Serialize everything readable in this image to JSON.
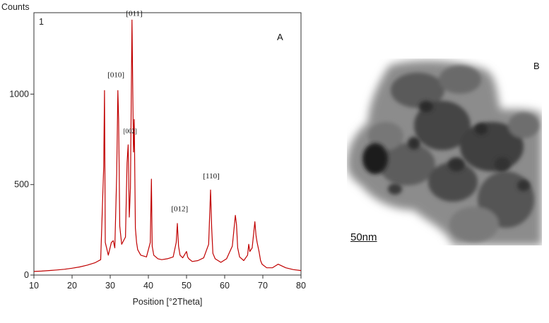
{
  "chart_data": {
    "type": "line",
    "ylabel": "Counts",
    "xlabel": "Position [°2Theta]",
    "panel_label": "A",
    "inset_number": "1",
    "xlim": [
      10,
      80
    ],
    "ylim": [
      0,
      1450
    ],
    "x_ticks": [
      10,
      20,
      30,
      40,
      50,
      60,
      70,
      80
    ],
    "y_ticks": [
      0,
      500,
      1000
    ],
    "grid": false,
    "line_color": "#c00000",
    "series": [
      {
        "x": [
          10,
          12,
          14,
          16,
          18,
          20,
          22,
          24,
          26,
          27.5,
          28.3,
          28.5,
          28.7,
          29.5,
          30.3,
          30.8,
          31.2,
          31.7,
          32.0,
          32.2,
          32.5,
          33.0,
          34.0,
          34.4,
          34.7,
          35.0,
          35.3,
          35.7,
          36.1,
          36.3,
          36.6,
          36.9,
          37.2,
          38.0,
          39.5,
          40.5,
          40.8,
          41.0,
          41.4,
          42.5,
          43.5,
          45.0,
          46.5,
          47.3,
          47.6,
          47.9,
          48.3,
          49.0,
          50.0,
          50.3,
          50.6,
          51.5,
          53.0,
          54.5,
          55.8,
          56.3,
          56.6,
          56.9,
          57.5,
          59.0,
          60.5,
          62.0,
          62.8,
          63.1,
          63.4,
          63.9,
          65.0,
          66.0,
          66.3,
          66.6,
          67.2,
          67.9,
          68.2,
          68.5,
          69.0,
          69.4,
          69.8,
          71.0,
          72.5,
          74.0,
          76.0,
          78.0,
          80.0
        ],
        "y": [
          20,
          22,
          25,
          28,
          32,
          38,
          45,
          55,
          68,
          85,
          600,
          1020,
          180,
          110,
          180,
          190,
          150,
          560,
          1020,
          860,
          270,
          170,
          210,
          620,
          720,
          320,
          480,
          1410,
          680,
          860,
          260,
          180,
          140,
          110,
          100,
          180,
          530,
          160,
          110,
          90,
          85,
          90,
          100,
          180,
          285,
          160,
          110,
          95,
          130,
          100,
          90,
          75,
          80,
          95,
          170,
          470,
          260,
          120,
          90,
          70,
          90,
          160,
          330,
          280,
          150,
          100,
          80,
          110,
          170,
          130,
          150,
          295,
          220,
          180,
          130,
          80,
          60,
          40,
          40,
          60,
          40,
          30,
          25
        ]
      }
    ],
    "annotations": [
      {
        "text": "[011]",
        "x": 36.3,
        "y": 1410
      },
      {
        "text": "[010]",
        "x": 31.5,
        "y": 1070
      },
      {
        "text": "[002]",
        "x": 35.2,
        "y": 760
      },
      {
        "text": "[110]",
        "x": 56.5,
        "y": 510
      },
      {
        "text": "[012]",
        "x": 48.2,
        "y": 330
      }
    ]
  },
  "image_panel": {
    "label": "B",
    "scale_bar": "50nm"
  }
}
